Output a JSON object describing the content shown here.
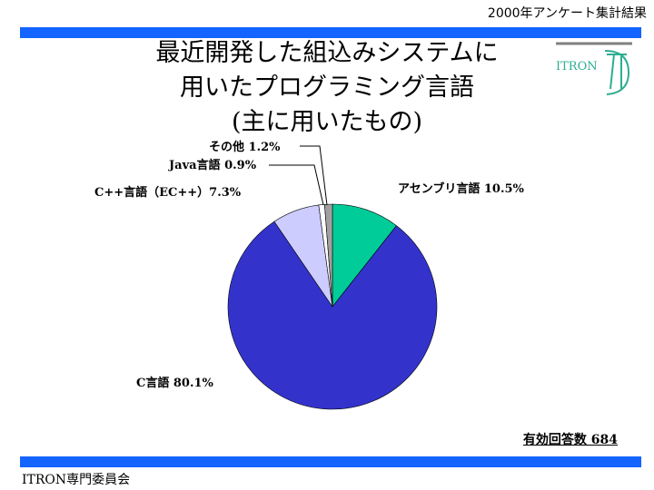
{
  "header": {
    "text": "2000年アンケート集計結果"
  },
  "title": {
    "line1": "最近開発した組込みシステムに",
    "line2": "用いたプログラミング言語",
    "line3": "(主に用いたもの)"
  },
  "logo": {
    "text": "ITRON"
  },
  "chart_data": {
    "type": "pie",
    "title": "最近開発した組込みシステムに用いたプログラミング言語 (主に用いたもの)",
    "slices": [
      {
        "label": "アセンブリ言語 10.5%",
        "value": 10.5,
        "color": "#00cc99"
      },
      {
        "label": "C言語 80.1%",
        "value": 80.1,
        "color": "#3333cc"
      },
      {
        "label": "C++言語（EC++）7.3%",
        "value": 7.3,
        "color": "#ccccff"
      },
      {
        "label": "Java言語 0.9%",
        "value": 0.9,
        "color": "#ffffff"
      },
      {
        "label": "その他 1.2%",
        "value": 1.2,
        "color": "#a0a0a0"
      }
    ],
    "start_angle_deg": 0,
    "direction": "clockwise"
  },
  "responses": "有効回答数 684",
  "footer": {
    "text": "ITRON専門委員会"
  },
  "colors": {
    "accent_bar": "#1464ff",
    "logo": "#2eae92"
  }
}
